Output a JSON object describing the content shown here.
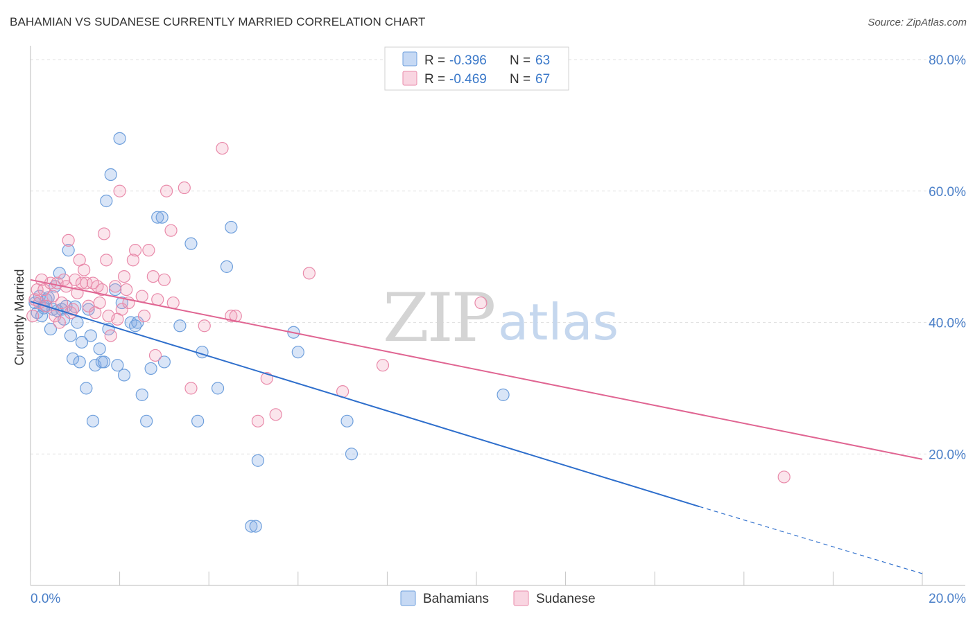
{
  "title": "BAHAMIAN VS SUDANESE CURRENTLY MARRIED CORRELATION CHART",
  "source": "Source: ZipAtlas.com",
  "watermark": {
    "zip": "ZIP",
    "atlas": "atlas"
  },
  "chart_data": {
    "type": "scatter",
    "xlabel": "",
    "ylabel": "Currently Married",
    "xlim": [
      0,
      20
    ],
    "ylim": [
      0,
      80
    ],
    "x_tick_labels": [
      {
        "value": 0,
        "label": "0.0%"
      },
      {
        "value": 20,
        "label": "20.0%"
      }
    ],
    "y_tick_labels": [
      {
        "value": 20,
        "label": "20.0%"
      },
      {
        "value": 40,
        "label": "40.0%"
      },
      {
        "value": 60,
        "label": "60.0%"
      },
      {
        "value": 80,
        "label": "80.0%"
      }
    ],
    "grid": true,
    "legend_position": "top-center",
    "stats": [
      {
        "r_label": "R =",
        "r_value": "-0.396",
        "n_label": "N =",
        "n_value": "63"
      },
      {
        "r_label": "R =",
        "r_value": "-0.469",
        "n_label": "N =",
        "n_value": "67"
      }
    ],
    "series": [
      {
        "name": "Bahamians",
        "color": "#6e9fdc",
        "fill": "rgba(128,170,230,0.30)",
        "line_color": "#2f6fcc",
        "trend": {
          "x0": 0,
          "y0": 43.2,
          "x1": 15.0,
          "y1": 12.0,
          "x_dash_end": 20.0,
          "y_dash_end": 1.8
        },
        "points": [
          [
            0.1,
            43.0
          ],
          [
            0.15,
            41.5
          ],
          [
            0.2,
            44.0
          ],
          [
            0.25,
            41.0
          ],
          [
            0.3,
            42.5
          ],
          [
            0.35,
            43.5
          ],
          [
            0.45,
            39.0
          ],
          [
            0.5,
            42.0
          ],
          [
            0.55,
            45.5
          ],
          [
            0.65,
            47.5
          ],
          [
            0.7,
            42.0
          ],
          [
            0.75,
            40.5
          ],
          [
            0.8,
            42.5
          ],
          [
            0.85,
            51.0
          ],
          [
            0.9,
            38.0
          ],
          [
            0.95,
            34.5
          ],
          [
            1.05,
            40.0
          ],
          [
            1.1,
            34.0
          ],
          [
            1.15,
            37.0
          ],
          [
            1.25,
            30.0
          ],
          [
            1.3,
            42.0
          ],
          [
            1.35,
            38.0
          ],
          [
            1.4,
            25.0
          ],
          [
            1.45,
            33.5
          ],
          [
            1.55,
            36.0
          ],
          [
            1.6,
            34.0
          ],
          [
            1.65,
            34.0
          ],
          [
            1.7,
            58.5
          ],
          [
            1.75,
            39.0
          ],
          [
            1.8,
            62.5
          ],
          [
            1.9,
            45.0
          ],
          [
            1.95,
            33.5
          ],
          [
            2.0,
            68.0
          ],
          [
            2.05,
            43.0
          ],
          [
            2.1,
            32.0
          ],
          [
            2.25,
            40.0
          ],
          [
            2.35,
            39.5
          ],
          [
            2.4,
            40.0
          ],
          [
            2.5,
            29.0
          ],
          [
            2.6,
            25.0
          ],
          [
            2.7,
            33.0
          ],
          [
            2.85,
            56.0
          ],
          [
            2.95,
            56.0
          ],
          [
            3.0,
            34.0
          ],
          [
            3.35,
            39.5
          ],
          [
            3.6,
            52.0
          ],
          [
            3.75,
            25.0
          ],
          [
            3.85,
            35.5
          ],
          [
            4.2,
            30.0
          ],
          [
            4.4,
            48.5
          ],
          [
            4.5,
            54.5
          ],
          [
            4.95,
            9.0
          ],
          [
            5.05,
            9.0
          ],
          [
            5.1,
            19.0
          ],
          [
            5.9,
            38.5
          ],
          [
            6.0,
            35.5
          ],
          [
            7.1,
            25.0
          ],
          [
            7.2,
            20.0
          ],
          [
            10.6,
            29.0
          ],
          [
            0.3,
            42.2
          ],
          [
            0.6,
            41.8
          ],
          [
            1.0,
            42.4
          ],
          [
            0.4,
            43.8
          ]
        ]
      },
      {
        "name": "Sudanese",
        "color": "#e98aaa",
        "fill": "rgba(240,150,180,0.25)",
        "line_color": "#e06592",
        "trend": {
          "x0": 0,
          "y0": 46.5,
          "x1": 20.0,
          "y1": 19.2
        },
        "points": [
          [
            0.05,
            41.0
          ],
          [
            0.1,
            43.5
          ],
          [
            0.15,
            45.0
          ],
          [
            0.2,
            43.0
          ],
          [
            0.25,
            46.5
          ],
          [
            0.3,
            45.0
          ],
          [
            0.35,
            42.5
          ],
          [
            0.45,
            46.0
          ],
          [
            0.5,
            44.0
          ],
          [
            0.55,
            41.0
          ],
          [
            0.6,
            46.0
          ],
          [
            0.65,
            40.0
          ],
          [
            0.7,
            43.0
          ],
          [
            0.75,
            46.5
          ],
          [
            0.8,
            45.5
          ],
          [
            0.85,
            52.5
          ],
          [
            0.9,
            41.5
          ],
          [
            0.95,
            42.0
          ],
          [
            1.0,
            46.5
          ],
          [
            1.05,
            44.5
          ],
          [
            1.1,
            49.5
          ],
          [
            1.15,
            46.0
          ],
          [
            1.2,
            48.0
          ],
          [
            1.25,
            46.0
          ],
          [
            1.3,
            42.5
          ],
          [
            1.4,
            46.0
          ],
          [
            1.45,
            41.5
          ],
          [
            1.5,
            45.5
          ],
          [
            1.55,
            43.0
          ],
          [
            1.6,
            45.0
          ],
          [
            1.65,
            53.5
          ],
          [
            1.7,
            49.5
          ],
          [
            1.75,
            41.0
          ],
          [
            1.8,
            38.0
          ],
          [
            1.9,
            45.5
          ],
          [
            1.95,
            40.5
          ],
          [
            2.0,
            60.0
          ],
          [
            2.05,
            42.0
          ],
          [
            2.1,
            47.0
          ],
          [
            2.15,
            45.0
          ],
          [
            2.2,
            43.0
          ],
          [
            2.3,
            49.5
          ],
          [
            2.35,
            51.0
          ],
          [
            2.5,
            44.0
          ],
          [
            2.55,
            41.0
          ],
          [
            2.65,
            51.0
          ],
          [
            2.75,
            47.0
          ],
          [
            2.8,
            35.0
          ],
          [
            2.85,
            43.5
          ],
          [
            3.0,
            46.5
          ],
          [
            3.05,
            60.0
          ],
          [
            3.15,
            54.0
          ],
          [
            3.2,
            43.0
          ],
          [
            3.45,
            60.5
          ],
          [
            3.6,
            30.0
          ],
          [
            3.9,
            39.5
          ],
          [
            4.3,
            66.5
          ],
          [
            4.5,
            41.0
          ],
          [
            4.6,
            41.0
          ],
          [
            5.1,
            25.0
          ],
          [
            5.3,
            31.5
          ],
          [
            5.5,
            26.0
          ],
          [
            6.25,
            47.5
          ],
          [
            7.0,
            29.5
          ],
          [
            7.9,
            33.5
          ],
          [
            10.1,
            43.0
          ],
          [
            16.9,
            16.5
          ]
        ]
      }
    ]
  }
}
